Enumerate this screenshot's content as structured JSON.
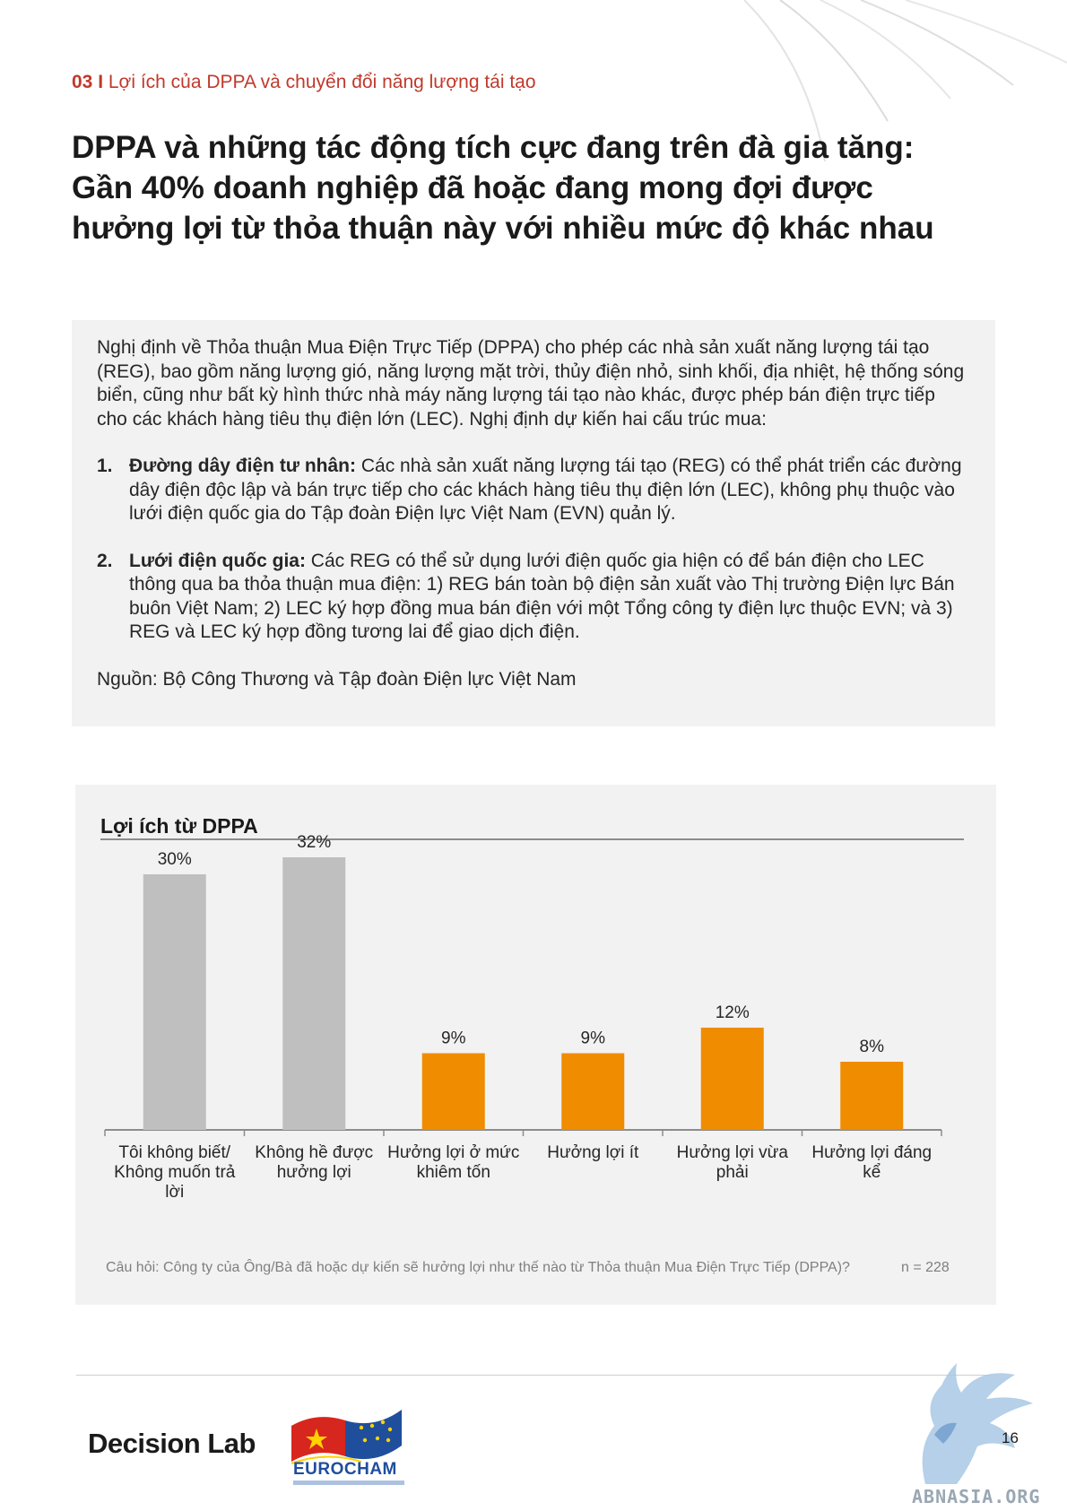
{
  "header": {
    "section_number": "03 I",
    "section_title": "Lợi ích của DPPA và chuyển đổi năng lượng tái tạo"
  },
  "title_lines": [
    "DPPA và những tác động tích cực đang trên đà gia tăng:",
    "Gần 40% doanh nghiệp đã hoặc đang mong đợi được",
    "hưởng lợi từ thỏa thuận này với nhiều mức độ khác nhau"
  ],
  "info_box": {
    "intro": "Nghị định về Thỏa thuận Mua Điện Trực Tiếp (DPPA) cho phép các nhà sản xuất năng lượng tái tạo (REG), bao gồm năng lượng gió, năng lượng mặt trời, thủy điện nhỏ, sinh khối, địa nhiệt, hệ thống sóng biển, cũng như bất kỳ hình thức nhà máy năng lượng tái tạo nào khác, được phép bán điện trực tiếp cho các khách hàng tiêu thụ điện lớn (LEC). Nghị định dự kiến hai cấu trúc mua:",
    "items": [
      {
        "index": "1.",
        "term": "Đường dây điện tư nhân:",
        "text": " Các nhà sản xuất năng lượng tái tạo (REG) có thể phát triển các đường dây điện độc lập và bán trực tiếp cho các khách hàng tiêu thụ điện lớn (LEC), không phụ thuộc vào lưới điện quốc gia do Tập đoàn Điện lực Việt Nam (EVN) quản lý."
      },
      {
        "index": "2.",
        "term": "Lưới điện quốc gia:",
        "text": " Các REG có thể sử dụng lưới điện quốc gia hiện có để bán điện cho LEC thông qua ba thỏa thuận mua điện: 1) REG bán toàn bộ điện sản xuất vào Thị trường Điện lực Bán buôn Việt Nam; 2) LEC ký hợp đồng mua bán điện với một Tổng công ty điện lực thuộc EVN; và 3) REG và LEC ký hợp đồng tương lai để giao dịch điện."
      }
    ],
    "source": "Nguồn: Bộ Công Thương và Tập đoàn Điện lực Việt Nam"
  },
  "chart_data": {
    "type": "bar",
    "title": "Lợi ích từ DPPA",
    "categories": [
      [
        "Tôi không biết/",
        "Không muốn trả",
        "lời"
      ],
      [
        "Không hề được",
        "hưởng lợi"
      ],
      [
        "Hưởng lợi ở mức",
        "khiêm tốn"
      ],
      [
        "Hưởng lợi ít"
      ],
      [
        "Hưởng lợi vừa",
        "phải"
      ],
      [
        "Hưởng lợi đáng",
        "kể"
      ]
    ],
    "values": [
      30,
      32,
      9,
      9,
      12,
      8
    ],
    "value_labels": [
      "30%",
      "32%",
      "9%",
      "9%",
      "12%",
      "8%"
    ],
    "colors": [
      "#bfbfbf",
      "#bfbfbf",
      "#f08c00",
      "#f08c00",
      "#f08c00",
      "#f08c00"
    ],
    "ylim": [
      0,
      40
    ],
    "grid": false,
    "legend": "none",
    "question": "Câu hỏi: Công ty của Ông/Bà đã hoặc dự kiến sẽ hưởng lợi như thế nào từ Thỏa thuận Mua Điện Trực Tiếp (DPPA)?",
    "sample_size": "n = 228"
  },
  "footer": {
    "brand_decision_lab": "Decision Lab",
    "brand_eurocham": "EUROCHAM",
    "page_number": "16",
    "watermark": "ABNASIA.ORG"
  },
  "colors": {
    "accent_red": "#c0392b",
    "bar_gray": "#bfbfbf",
    "bar_orange": "#f08c00",
    "box_gray": "#f2f2f2"
  }
}
